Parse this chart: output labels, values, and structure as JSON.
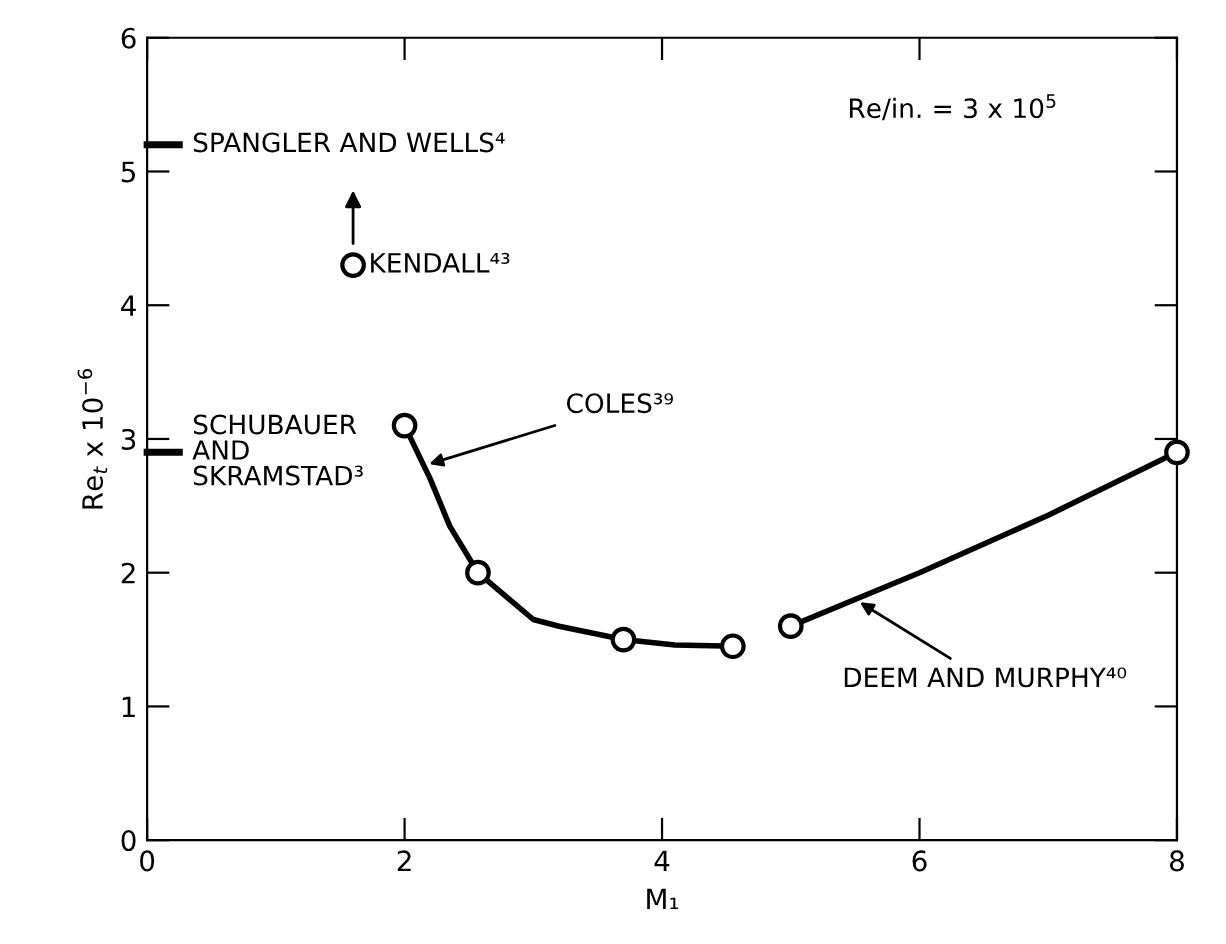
{
  "chart_data": {
    "type": "line",
    "xlabel": "M₁",
    "ylabel": "Re$_{t}$ x 10$^{−6}$",
    "xlim": [
      0,
      8
    ],
    "ylim": [
      0,
      6
    ],
    "xticks": [
      0,
      2,
      4,
      6,
      8
    ],
    "yticks": [
      0,
      1,
      2,
      3,
      4,
      5,
      6
    ],
    "grid": false,
    "series": [
      {
        "color": "#000000",
        "marker": "none",
        "x": [
          0,
          0.25
        ],
        "values": [
          5.2,
          5.2
        ]
      },
      {
        "color": "#000000",
        "marker": "none",
        "x": [
          0,
          0.25
        ],
        "values": [
          2.9,
          2.9
        ]
      },
      {
        "type": "scatter",
        "color": "#000000",
        "marker": "circle",
        "x": [
          1.6
        ],
        "values": [
          4.3
        ]
      },
      {
        "color": "#000000",
        "marker": "none",
        "x": [
          2.0,
          2.2,
          2.35,
          2.57,
          3.0,
          3.2,
          3.7,
          4.1,
          4.55
        ],
        "values": [
          3.1,
          2.7,
          2.35,
          2.0,
          1.65,
          1.6,
          1.5,
          1.46,
          1.45
        ]
      },
      {
        "type": "scatter",
        "color": "#000000",
        "marker": "circle",
        "x": [
          2.0,
          2.57,
          3.7,
          4.55
        ],
        "values": [
          3.1,
          2.0,
          1.5,
          1.45
        ]
      },
      {
        "color": "#000000",
        "marker": "none",
        "x": [
          5.0,
          6.0,
          7.0,
          8.0
        ],
        "values": [
          1.6,
          2.0,
          2.43,
          2.9
        ]
      },
      {
        "type": "scatter",
        "color": "#000000",
        "marker": "circle",
        "x": [
          5.0,
          8.0
        ],
        "values": [
          1.6,
          2.9
        ]
      }
    ],
    "annotations": [
      {
        "text": "SPANGLER AND WELLS⁴",
        "x": 0.25,
        "y": 5.2
      },
      {
        "text": "SCHUBAUER\nAND\nSKRAMSTAD³",
        "x": 0.25,
        "y": 2.9
      },
      {
        "text": "KENDALL⁴³",
        "x": 1.6,
        "y": 4.3
      },
      {
        "text": "COLES³⁹",
        "x": 2.15,
        "y": 2.8
      },
      {
        "text": "DEEM AND MURPHY⁴⁰",
        "x": 5.5,
        "y": 1.8
      },
      "Re/in. = 3 x 10$^{5}$"
    ]
  }
}
